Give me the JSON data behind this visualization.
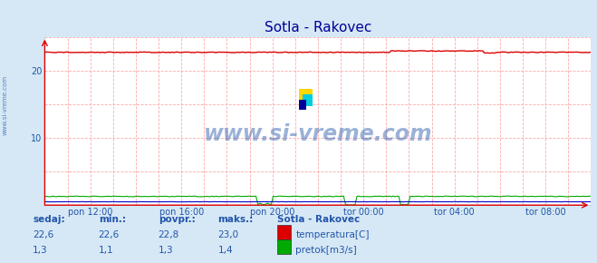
{
  "title": "Sotla - Rakovec",
  "bg_color": "#d6e8f5",
  "plot_bg_color": "#ffffff",
  "grid_color": "#ffaaaa",
  "x_ticks_labels": [
    "pon 12:00",
    "pon 16:00",
    "pon 20:00",
    "tor 00:00",
    "tor 04:00",
    "tor 08:00"
  ],
  "x_ticks_pos": [
    0.0833,
    0.25,
    0.4167,
    0.5833,
    0.75,
    0.9167
  ],
  "ylim": [
    0,
    25
  ],
  "yticks": [
    10,
    20
  ],
  "temp_color": "#dd0000",
  "flow_color": "#00aa00",
  "height_color": "#0000cc",
  "watermark_color": "#1a3a6b",
  "label_color": "#2255aa",
  "title_color": "#000099",
  "n_points": 288
}
